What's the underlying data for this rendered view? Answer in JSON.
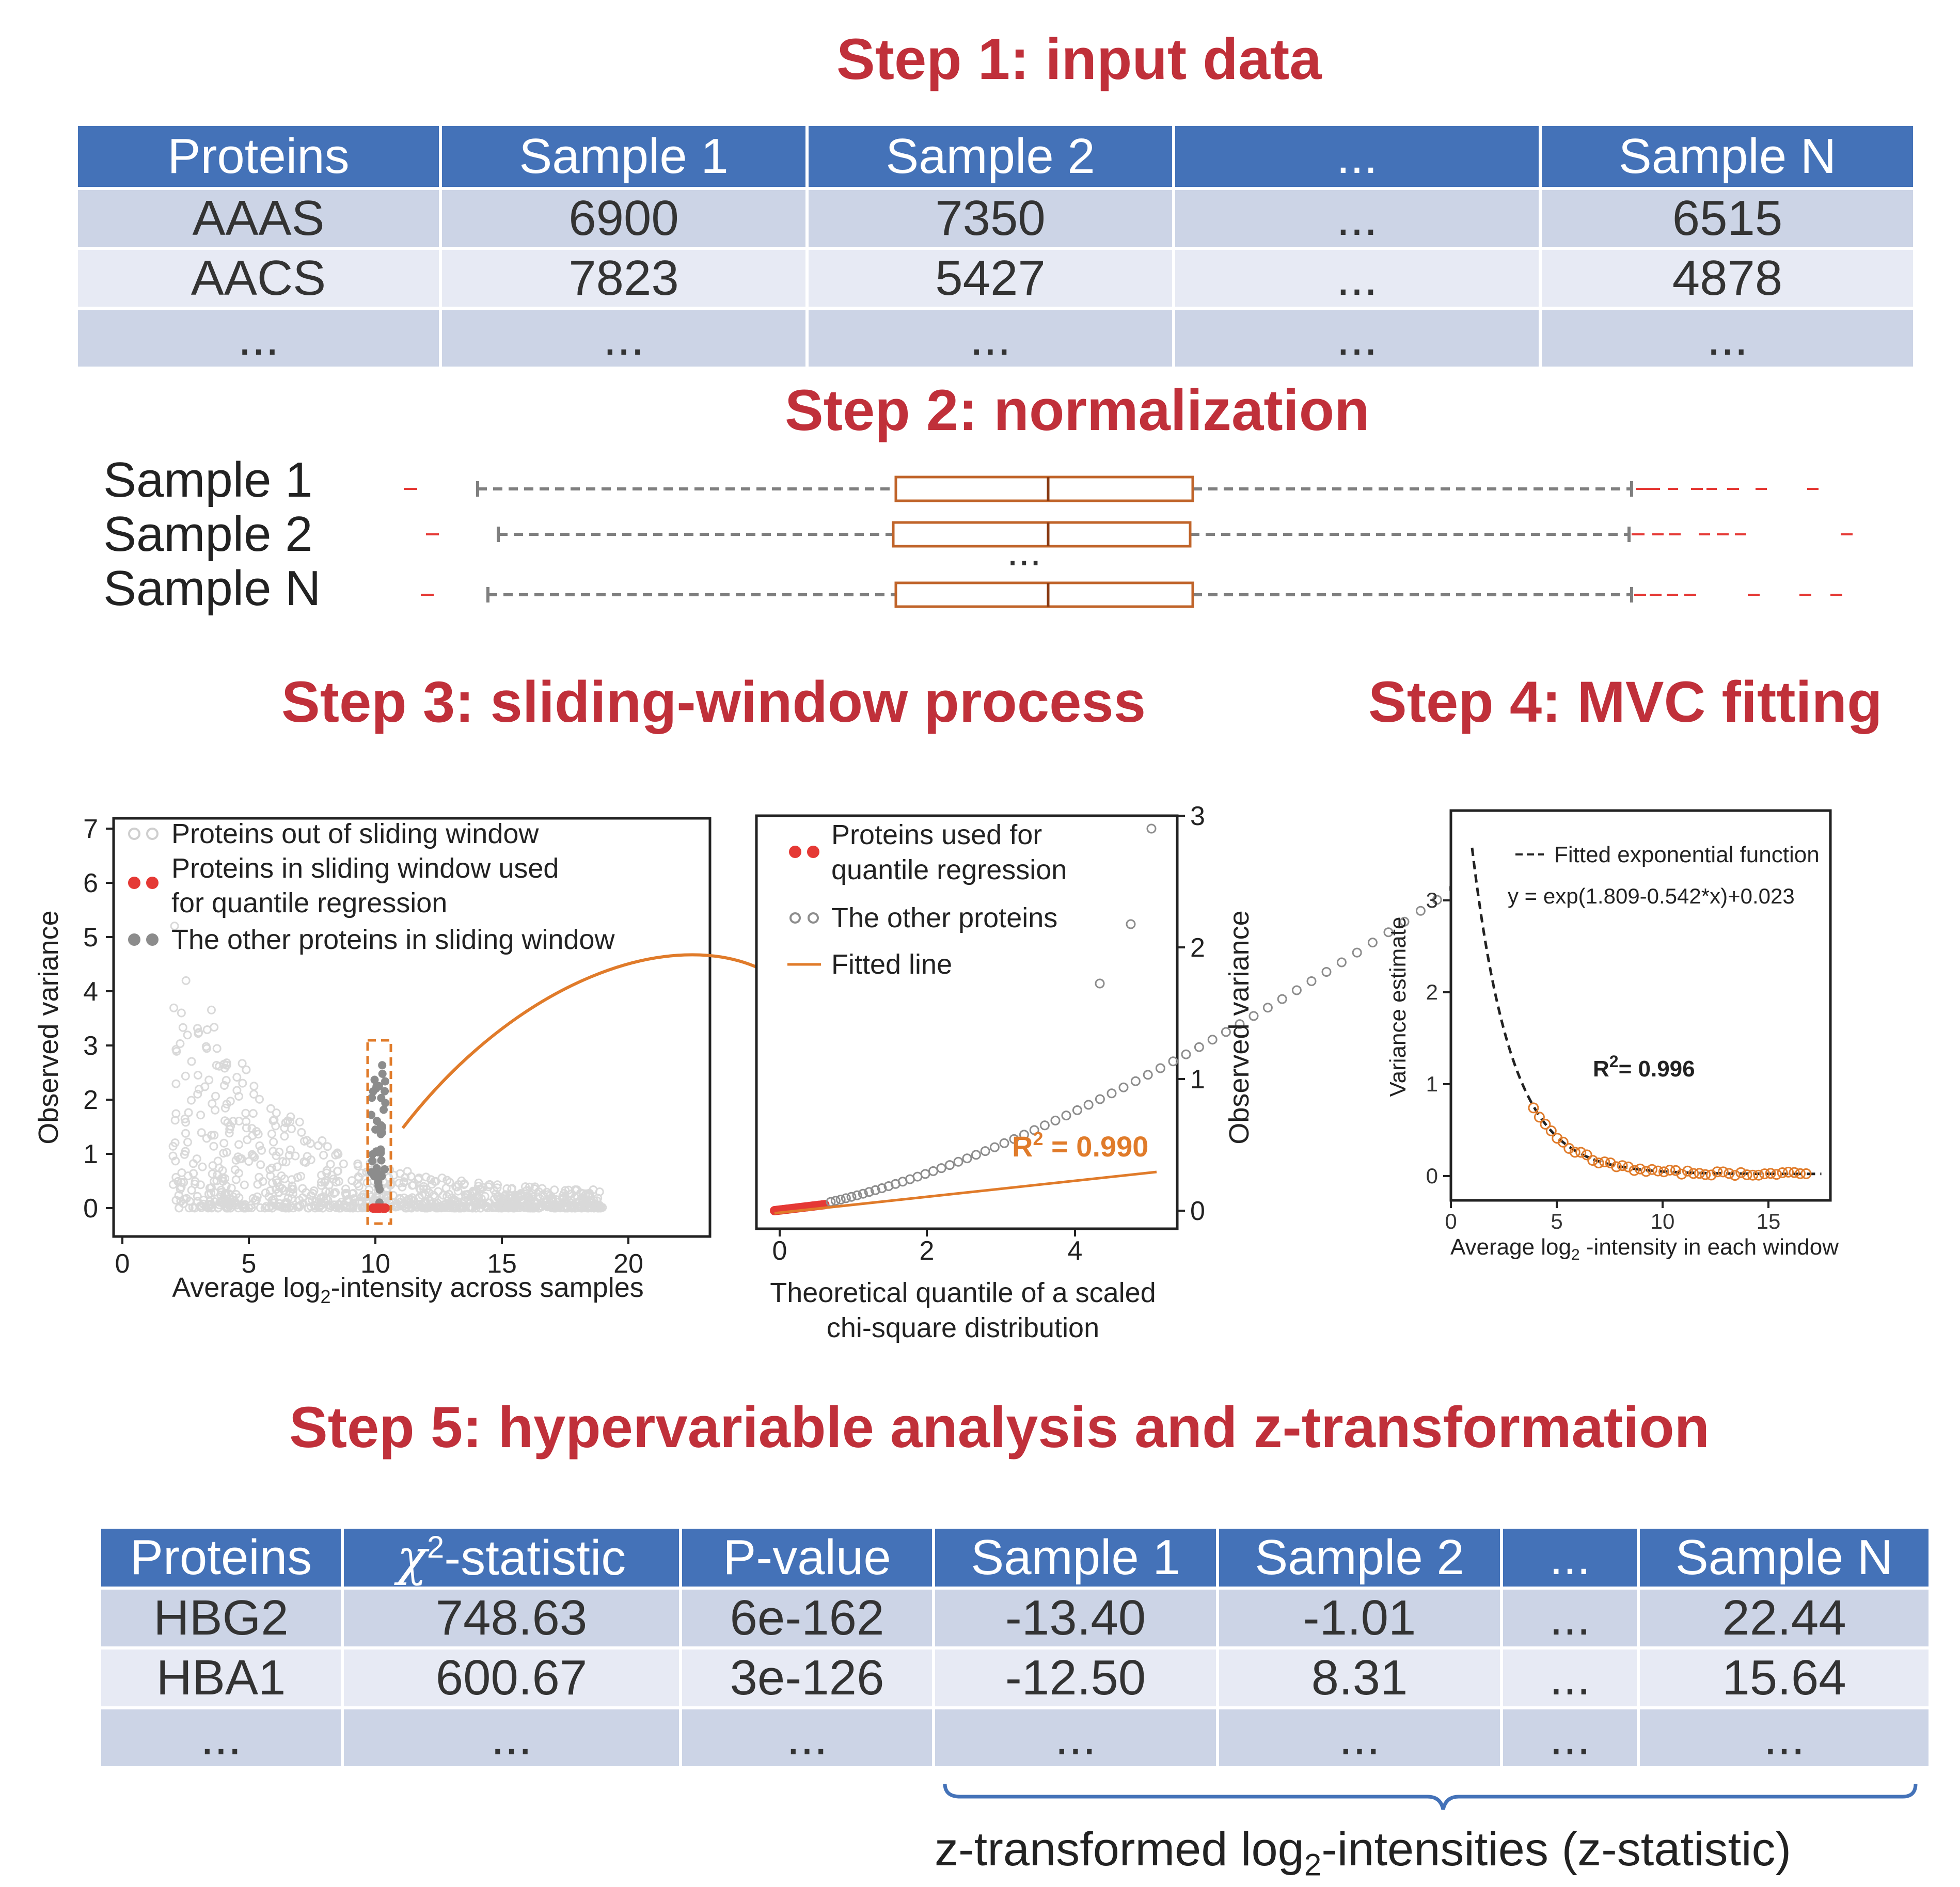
{
  "steps": {
    "s1": "Step 1: input data",
    "s2": "Step 2: normalization",
    "s3": "Step 3: sliding-window process",
    "s4": "Step 4: MVC fitting",
    "s5": "Step 5: hypervariable analysis and z-transformation"
  },
  "input_table": {
    "headers": [
      "Proteins",
      "Sample 1",
      "Sample 2",
      "...",
      "Sample N"
    ],
    "rows": [
      [
        "AAAS",
        "6900",
        "7350",
        "...",
        "6515"
      ],
      [
        "AACS",
        "7823",
        "5427",
        "...",
        "4878"
      ],
      [
        "...",
        "...",
        "...",
        "...",
        "..."
      ]
    ]
  },
  "normalization": {
    "samples": [
      "Sample 1",
      "Sample 2",
      "Sample N"
    ],
    "ellipsis": "..."
  },
  "plot_a": {
    "ylabel": "Observed variance",
    "xlabel_pre": "Average log",
    "xlabel_sub": "2",
    "xlabel_post": "-intensity across samples",
    "xticks": [
      "0",
      "5",
      "10",
      "15",
      "20"
    ],
    "yticks": [
      "0",
      "1",
      "2",
      "3",
      "4",
      "5",
      "6",
      "7"
    ],
    "legend": [
      "Proteins out of sliding window",
      "Proteins in sliding window used",
      "for quantile regression",
      "The other proteins in sliding window"
    ],
    "colors": {
      "out": "#d9d9d9",
      "used": "#e53935",
      "other": "#8c8c8c",
      "arrow": "#e07b2a"
    }
  },
  "plot_b": {
    "xlabel_line1": "Theoretical quantile of a scaled",
    "xlabel_line2": "chi-square distribution",
    "ylabel": "Observed variance",
    "xticks": [
      "0",
      "2",
      "4"
    ],
    "yticks": [
      "0",
      "1",
      "2",
      "3"
    ],
    "legend": [
      "Proteins used for",
      "quantile regression",
      "The other proteins",
      "Fitted line"
    ],
    "r2_pre": "R",
    "r2_sup": "2",
    "r2_post": " = 0.990"
  },
  "plot_c": {
    "ylabel": "Variance estimate",
    "xlabel_pre": "Average log",
    "xlabel_sub": "2",
    "xlabel_post": " -intensity in each window",
    "xticks": [
      "0",
      "5",
      "10",
      "15"
    ],
    "yticks": [
      "0",
      "1",
      "2",
      "3"
    ],
    "legend": "Fitted exponential function",
    "equation": "y = exp(1.809-0.542*x)+0.023",
    "r2_pre": "R",
    "r2_sup": "2",
    "r2_post": "= 0.996"
  },
  "output_table": {
    "headers": [
      "Proteins",
      "-statistic",
      "P-value",
      "Sample 1",
      "Sample  2",
      "...",
      "Sample  N"
    ],
    "chi_symbol": "χ",
    "chi_sup": "2",
    "rows": [
      [
        "HBG2",
        "748.63",
        "6e-162",
        "-13.40",
        "-1.01",
        "...",
        "22.44"
      ],
      [
        "HBA1",
        "600.67",
        "3e-126",
        "-12.50",
        "8.31",
        "...",
        "15.64"
      ],
      [
        "...",
        "...",
        "...",
        "...",
        "...",
        "...",
        "..."
      ]
    ]
  },
  "z_caption": {
    "pre": "z-transformed log",
    "sub": "2",
    "post": "-intensities (z-statistic)"
  }
}
